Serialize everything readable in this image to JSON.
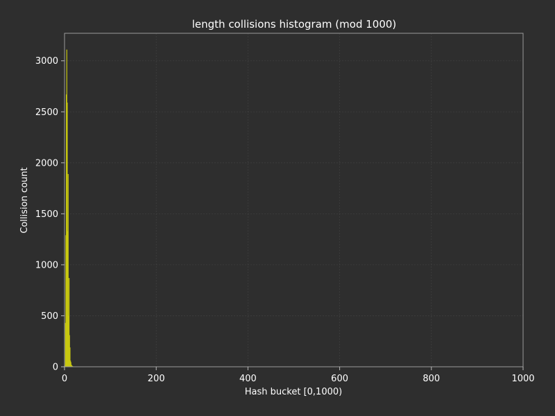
{
  "chart_data": {
    "type": "bar",
    "title": "length collisions histogram (mod 1000)",
    "xlabel": "Hash bucket [0,1000)",
    "ylabel": "Collision count",
    "xlim": [
      0,
      1000
    ],
    "ylim": [
      0,
      3270
    ],
    "xticks": [
      0,
      200,
      400,
      600,
      800,
      1000
    ],
    "yticks": [
      0,
      500,
      1000,
      1500,
      2000,
      2500,
      3000
    ],
    "grid": true,
    "bar_color": "#c8c810",
    "x": [
      1,
      2,
      3,
      4,
      5,
      6,
      7,
      8,
      9,
      10,
      11,
      12,
      13,
      14,
      15,
      16,
      17,
      18,
      19,
      20,
      21,
      22
    ],
    "values": [
      15,
      430,
      1290,
      2670,
      3110,
      2590,
      1330,
      1890,
      500,
      870,
      310,
      190,
      60,
      45,
      20,
      12,
      8,
      5,
      3,
      2,
      1,
      1
    ]
  },
  "colors": {
    "background": "#2e2e2e",
    "plot_background": "#2e2e2e",
    "bars": "#c8c810",
    "text": "#ffffff",
    "spine": "#9a9a9a"
  }
}
